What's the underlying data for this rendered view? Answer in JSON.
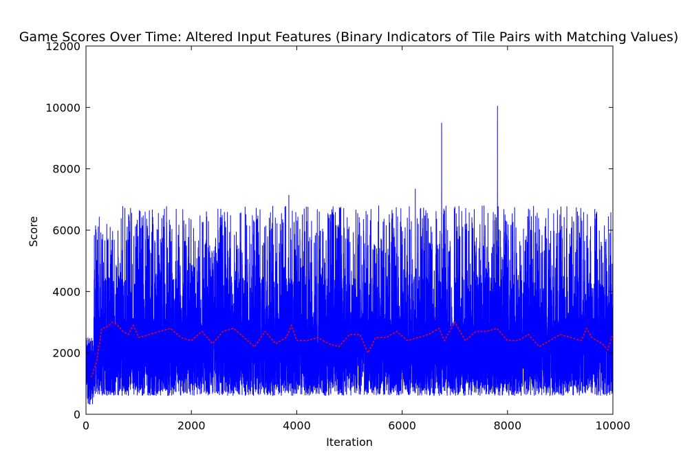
{
  "chart_data": {
    "type": "line",
    "title": "Game Scores Over Time: Altered Input Features (Binary Indicators of Tile Pairs with Matching Values)",
    "xlabel": "Iteration",
    "ylabel": "Score",
    "xlim": [
      0,
      10000
    ],
    "ylim": [
      0,
      12000
    ],
    "xticks": [
      0,
      2000,
      4000,
      6000,
      8000,
      10000
    ],
    "yticks": [
      0,
      2000,
      4000,
      6000,
      8000,
      10000,
      12000
    ],
    "xtick_labels": [
      "0",
      "2000",
      "4000",
      "6000",
      "8000",
      "10000"
    ],
    "ytick_labels": [
      "0",
      "2000",
      "4000",
      "6000",
      "8000",
      "10000",
      "12000"
    ],
    "grid": false,
    "series": [
      {
        "style": "solid",
        "color": "#0000ff",
        "points": 10000,
        "typical_range": [
          500,
          5500
        ],
        "center": 2000,
        "peaks": [
          {
            "x": 6750,
            "y": 9500
          },
          {
            "x": 7810,
            "y": 10050
          },
          {
            "x": 3850,
            "y": 7150
          },
          {
            "x": 6250,
            "y": 7350
          }
        ]
      },
      {
        "style": "dashed",
        "color": "#ff0000",
        "x": [
          100,
          200,
          300,
          400,
          500,
          600,
          700,
          800,
          900,
          1000,
          1200,
          1400,
          1600,
          1800,
          2000,
          2200,
          2400,
          2600,
          2800,
          3000,
          3200,
          3400,
          3600,
          3800,
          3900,
          4000,
          4200,
          4400,
          4600,
          4800,
          5000,
          5200,
          5350,
          5500,
          5700,
          5900,
          6100,
          6300,
          6500,
          6700,
          6800,
          7000,
          7200,
          7400,
          7600,
          7800,
          8000,
          8200,
          8400,
          8600,
          8800,
          9000,
          9200,
          9400,
          9500,
          9600,
          9800,
          9900,
          10000
        ],
        "y": [
          1200,
          1700,
          2800,
          2850,
          3000,
          2900,
          2700,
          2600,
          2900,
          2500,
          2600,
          2700,
          2800,
          2500,
          2400,
          2700,
          2300,
          2700,
          2800,
          2500,
          2200,
          2700,
          2300,
          2500,
          2900,
          2400,
          2400,
          2500,
          2300,
          2200,
          2600,
          2600,
          2000,
          2500,
          2500,
          2700,
          2400,
          2500,
          2600,
          2800,
          2400,
          3000,
          2400,
          2700,
          2700,
          2800,
          2400,
          2400,
          2600,
          2200,
          2400,
          2600,
          2500,
          2400,
          2800,
          2500,
          2300,
          2100,
          2600
        ]
      }
    ]
  }
}
